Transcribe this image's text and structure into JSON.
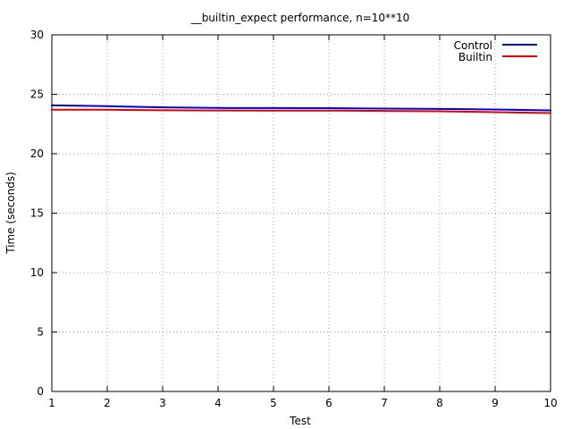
{
  "chart_data": {
    "type": "line",
    "title": "__builtin_expect performance, n=10**10",
    "xlabel": "Test",
    "ylabel": "Time (seconds)",
    "xlim": [
      1,
      10
    ],
    "ylim": [
      0,
      30
    ],
    "xticks": [
      "1",
      "2",
      "3",
      "4",
      "5",
      "6",
      "7",
      "8",
      "9",
      "10"
    ],
    "yticks": [
      "0",
      "5",
      "10",
      "15",
      "20",
      "25",
      "30"
    ],
    "grid": true,
    "legend_position": "top-right",
    "x": [
      1,
      2,
      3,
      4,
      5,
      6,
      7,
      8,
      9,
      10
    ],
    "series": [
      {
        "name": "Control",
        "color": "#0000e0",
        "values": [
          24.07,
          24.0,
          23.9,
          23.85,
          23.84,
          23.83,
          23.8,
          23.77,
          23.72,
          23.65
        ]
      },
      {
        "name": "Builtin",
        "color": "#e00000",
        "values": [
          23.7,
          23.7,
          23.66,
          23.64,
          23.63,
          23.63,
          23.6,
          23.57,
          23.5,
          23.42
        ]
      }
    ]
  }
}
